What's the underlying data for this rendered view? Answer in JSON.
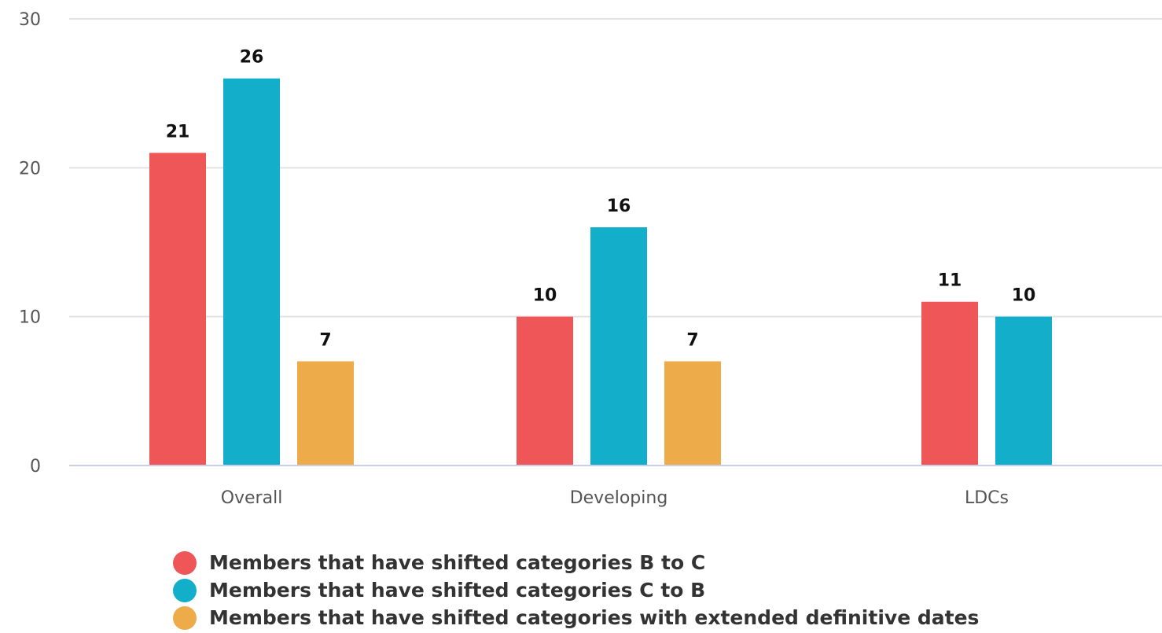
{
  "chart_data": {
    "type": "bar",
    "categories": [
      "Overall",
      "Developing",
      "LDCs"
    ],
    "series": [
      {
        "name": "Members that have shifted categories B to C",
        "values": [
          21,
          10,
          11
        ],
        "color": "#ef5658"
      },
      {
        "name": "Members that have shifted categories C to B",
        "values": [
          26,
          16,
          10
        ],
        "color": "#13aec9"
      },
      {
        "name": "Members that have shifted categories with extended definitive dates",
        "values": [
          7,
          7,
          null
        ],
        "color": "#eeab4a"
      }
    ],
    "yticks": [
      0,
      10,
      20,
      30
    ],
    "ylim": [
      0,
      30
    ],
    "grid": true,
    "legend_position": "bottom"
  }
}
